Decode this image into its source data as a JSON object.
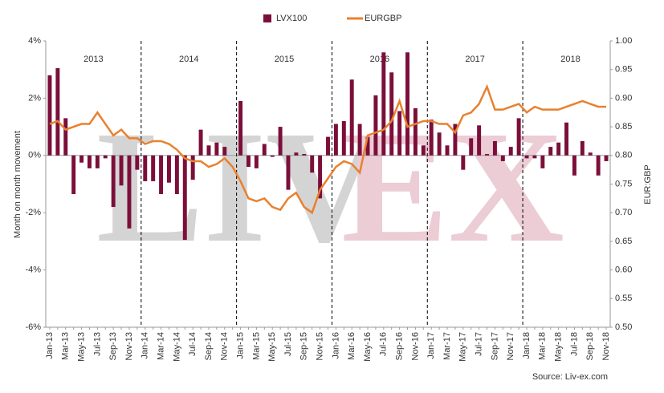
{
  "chart_data": {
    "type": "bar_line",
    "y_label": "Month on month movement",
    "y2_label": "EUR:GBP",
    "source": "Source: Liv-ex.com",
    "watermark": [
      "LIV",
      "EX"
    ],
    "annotations": [
      "2013",
      "2014",
      "2015",
      "2016",
      "2017",
      "2018"
    ],
    "categories": [
      "Jan-13",
      null,
      "Mar-13",
      null,
      "May-13",
      null,
      "Jul-13",
      null,
      "Sep-13",
      null,
      "Nov-13",
      null,
      "Jan-14",
      null,
      "Mar-14",
      null,
      "May-14",
      null,
      "Jul-14",
      null,
      "Sep-14",
      null,
      "Nov-14",
      null,
      "Jan-15",
      null,
      "Mar-15",
      null,
      "May-15",
      null,
      "Jul-15",
      null,
      "Sep-15",
      null,
      "Nov-15",
      null,
      "Jan-16",
      null,
      "Mar-16",
      null,
      "May-16",
      null,
      "Jul-16",
      null,
      "Sep-16",
      null,
      "Nov-16",
      null,
      "Jan-17",
      null,
      "Mar-17",
      null,
      "May-17",
      null,
      "Jul-17",
      null,
      "Sep-17",
      null,
      "Nov-17",
      null,
      "Jan-18",
      null,
      "Mar-18",
      null,
      "May-18",
      null,
      "Jul-18",
      null,
      "Sep-18",
      null,
      "Nov-18"
    ],
    "series": [
      {
        "name": "LVX100",
        "type": "bar",
        "color": "#7b0f3a",
        "values": [
          2.8,
          3.05,
          1.3,
          -1.35,
          -0.25,
          -0.45,
          -0.45,
          -0.1,
          -1.8,
          -1.05,
          -2.55,
          -0.5,
          -0.9,
          -0.9,
          -1.35,
          -0.95,
          -1.35,
          -2.95,
          -0.85,
          0.9,
          0.35,
          0.45,
          0.3,
          0.0,
          1.9,
          -0.4,
          -0.45,
          0.4,
          -0.05,
          1.0,
          -1.2,
          0.1,
          0.05,
          -0.6,
          -1.5,
          0.65,
          1.1,
          1.2,
          2.65,
          1.1,
          0.65,
          2.1,
          3.6,
          2.9,
          1.55,
          3.6,
          1.65,
          0.35,
          1.25,
          0.8,
          0.35,
          1.1,
          -0.5,
          0.6,
          1.05,
          0.05,
          0.5,
          -0.2,
          0.3,
          1.3,
          -0.1,
          -0.1,
          -0.45,
          0.3,
          0.45,
          1.15,
          -0.7,
          0.5,
          0.1,
          -0.7,
          -0.2
        ]
      },
      {
        "name": "EURGBP",
        "type": "line",
        "axis": "y2",
        "color": "#e8812f",
        "values": [
          0.855,
          0.86,
          0.845,
          0.85,
          0.855,
          0.855,
          0.875,
          0.855,
          0.835,
          0.845,
          0.83,
          0.83,
          0.82,
          0.825,
          0.825,
          0.82,
          0.81,
          0.795,
          0.79,
          0.79,
          0.78,
          0.785,
          0.795,
          0.78,
          0.755,
          0.725,
          0.72,
          0.725,
          0.71,
          0.705,
          0.725,
          0.735,
          0.71,
          0.7,
          0.74,
          0.76,
          0.78,
          0.79,
          0.785,
          0.77,
          0.835,
          0.84,
          0.845,
          0.86,
          0.895,
          0.85,
          0.855,
          0.86,
          0.86,
          0.855,
          0.855,
          0.84,
          0.87,
          0.875,
          0.89,
          0.92,
          0.88,
          0.88,
          0.885,
          0.89,
          0.875,
          0.885,
          0.88,
          0.88,
          0.88,
          0.885,
          0.89,
          0.895,
          0.89,
          0.885,
          0.885
        ]
      }
    ],
    "ylim": [
      -6,
      4
    ],
    "yticks": [
      {
        "value": -6,
        "label": "-6%"
      },
      {
        "value": -4,
        "label": "-4%"
      },
      {
        "value": -2,
        "label": "-2%"
      },
      {
        "value": 0,
        "label": "0%"
      },
      {
        "value": 2,
        "label": "2%"
      },
      {
        "value": 4,
        "label": "4%"
      }
    ],
    "y2lim": [
      0.5,
      1.0
    ],
    "y2ticks": [
      {
        "value": 0.5,
        "label": "0.50"
      },
      0.55,
      {
        "value": 0.6,
        "label": "0.60"
      },
      0.65,
      {
        "value": 0.7,
        "label": "0.70"
      },
      0.75,
      {
        "value": 0.8,
        "label": "0.80"
      },
      0.85,
      {
        "value": 0.9,
        "label": "0.90"
      },
      0.95,
      {
        "value": 1.0,
        "label": "1.00"
      }
    ],
    "legend": "top"
  }
}
